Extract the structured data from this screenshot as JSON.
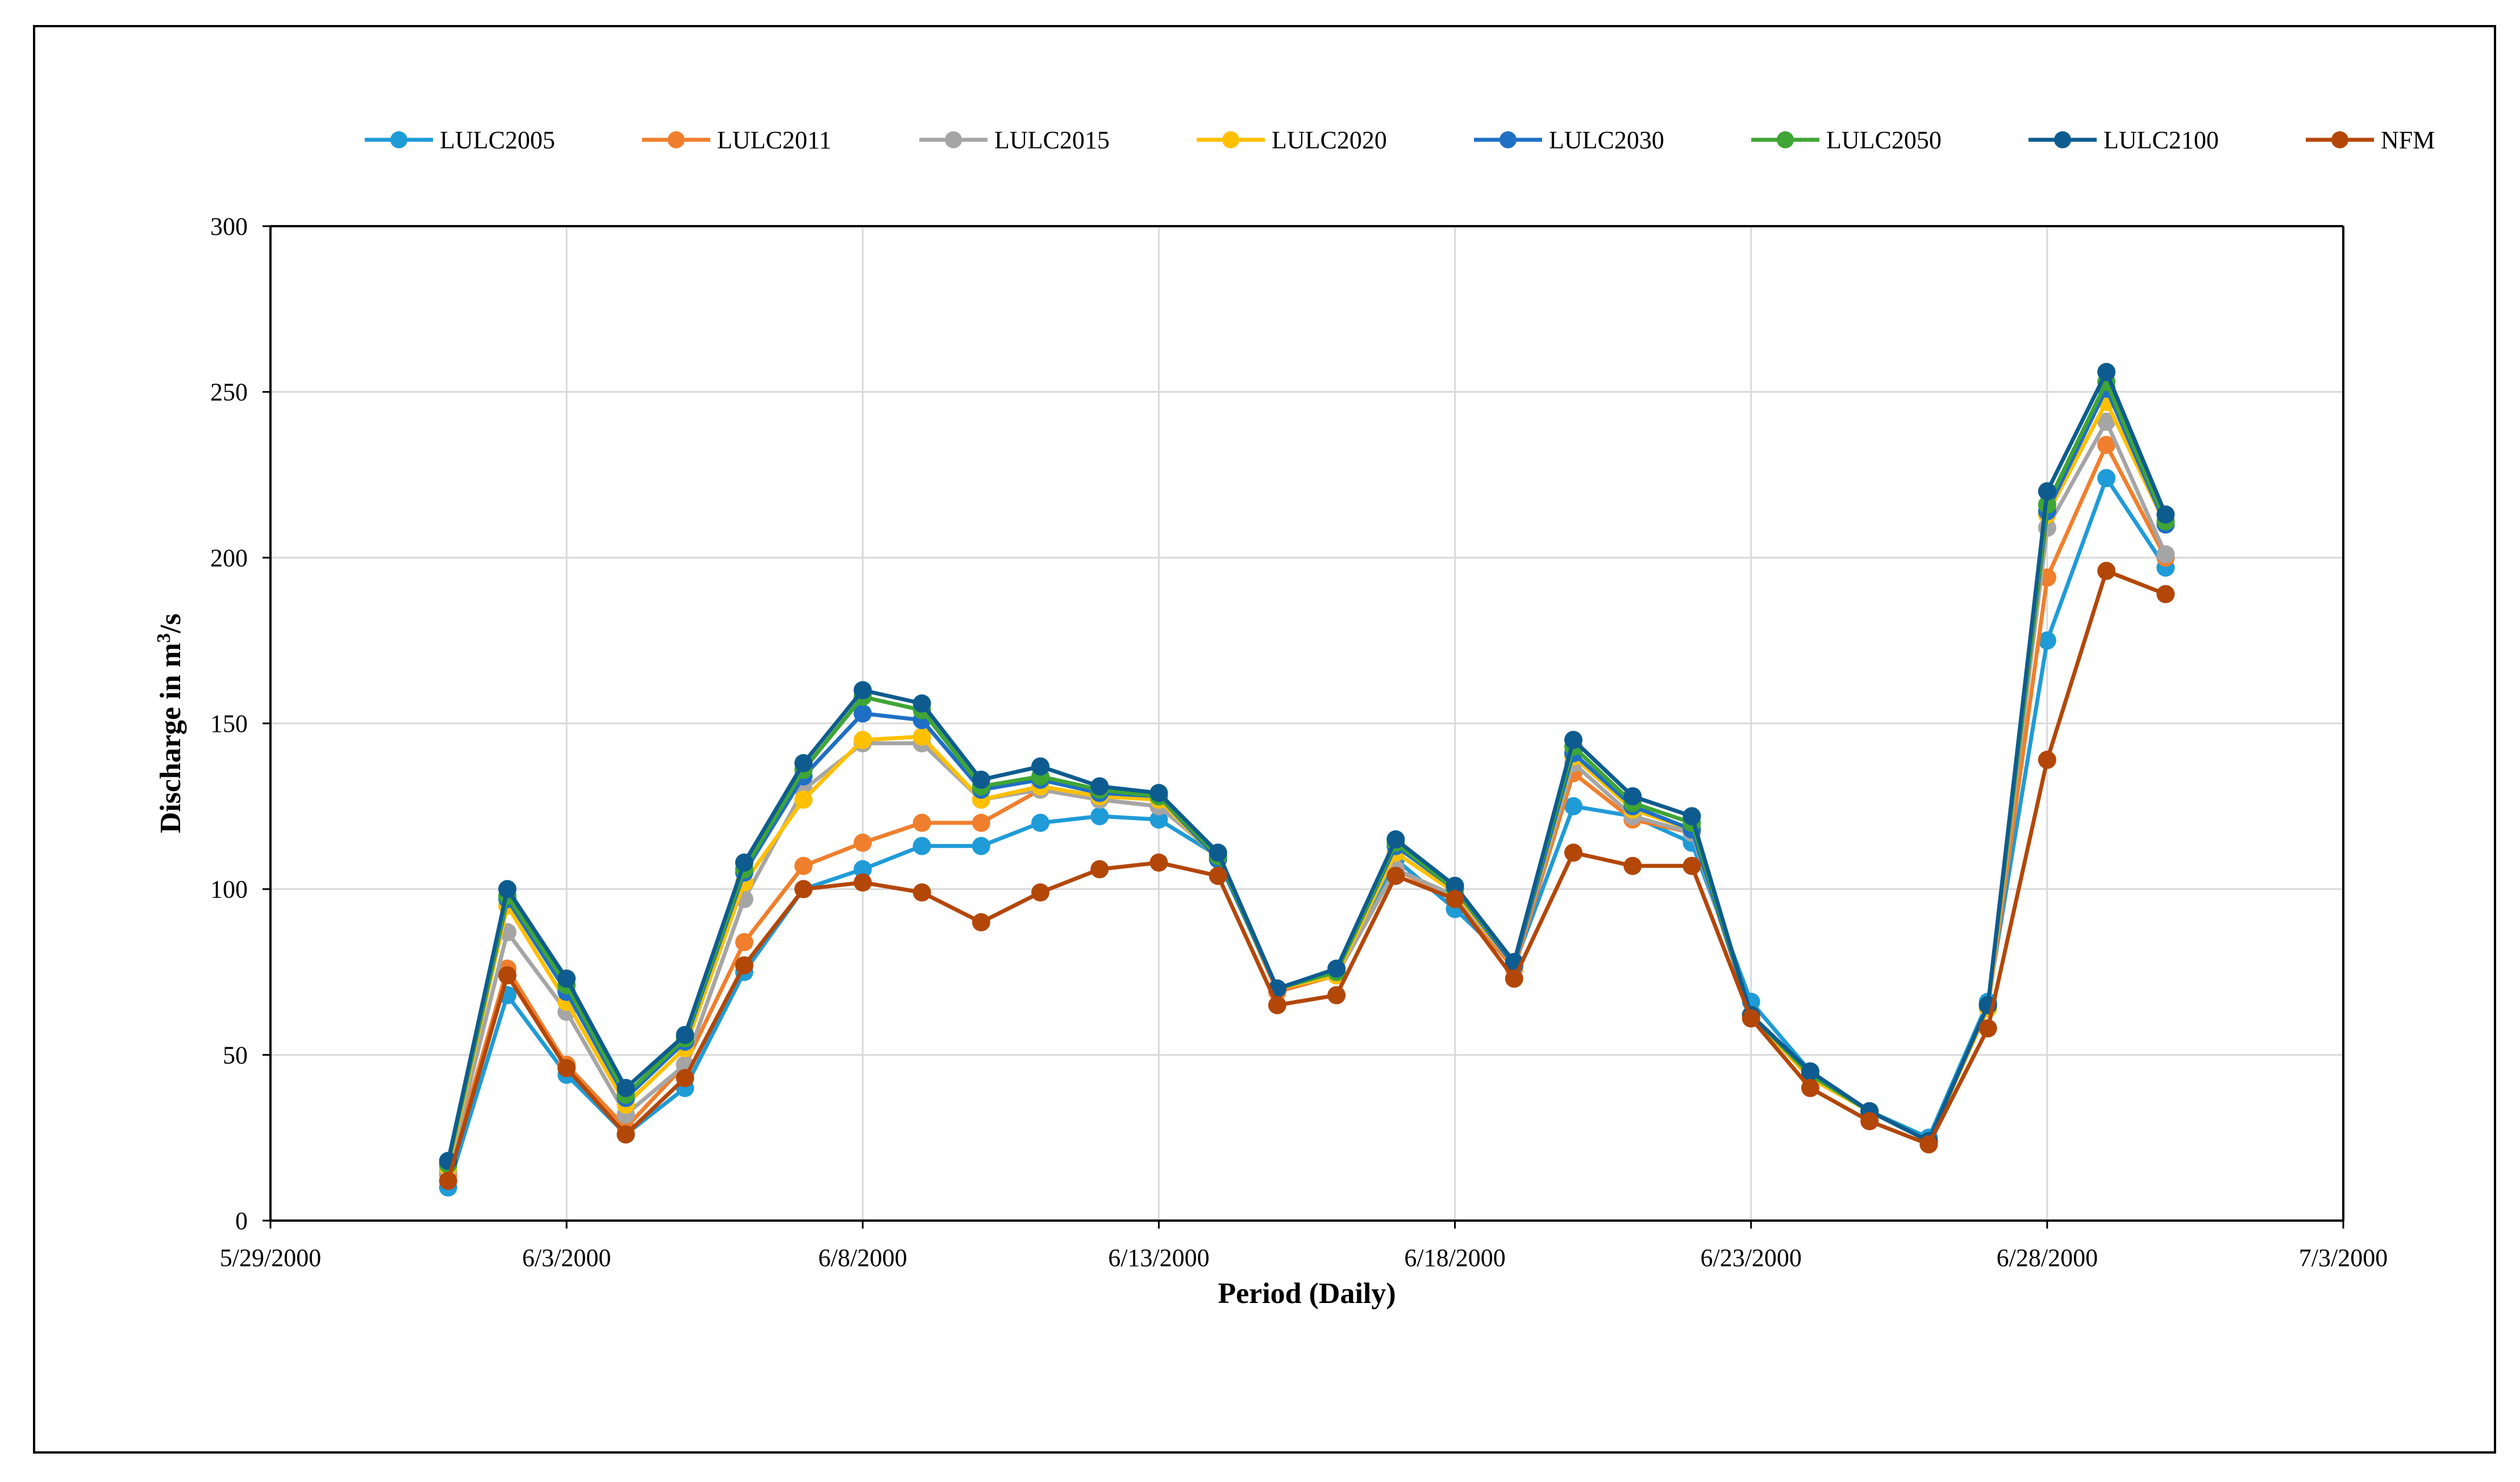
{
  "chart_data": {
    "type": "line",
    "title": "",
    "xlabel": "Period (Daily)",
    "ylabel": "Discharge in m³/s",
    "ylabel_parts": {
      "prefix": "Discharge in m",
      "sup": "3",
      "suffix": "/s"
    },
    "ylim": [
      0,
      300
    ],
    "yticks": [
      0,
      50,
      100,
      150,
      200,
      250,
      300
    ],
    "xlim": [
      "2000-05-29",
      "2000-07-03"
    ],
    "xticks": [
      "5/29/2000",
      "6/3/2000",
      "6/8/2000",
      "6/13/2000",
      "6/18/2000",
      "6/23/2000",
      "6/28/2000",
      "7/3/2000"
    ],
    "grid": true,
    "legend_position": "top",
    "x": [
      "2000-06-01",
      "2000-06-02",
      "2000-06-03",
      "2000-06-04",
      "2000-06-05",
      "2000-06-06",
      "2000-06-07",
      "2000-06-08",
      "2000-06-09",
      "2000-06-10",
      "2000-06-11",
      "2000-06-12",
      "2000-06-13",
      "2000-06-14",
      "2000-06-15",
      "2000-06-16",
      "2000-06-17",
      "2000-06-18",
      "2000-06-19",
      "2000-06-20",
      "2000-06-21",
      "2000-06-22",
      "2000-06-23",
      "2000-06-24",
      "2000-06-25",
      "2000-06-26",
      "2000-06-27",
      "2000-06-28",
      "2000-06-29",
      "2000-06-30"
    ],
    "series": [
      {
        "name": "LULC2005",
        "color": "#1F9BD7",
        "values": [
          10,
          68,
          44,
          26,
          40,
          75,
          100,
          106,
          113,
          113,
          120,
          122,
          121,
          110,
          70,
          74,
          109,
          94,
          77,
          125,
          122,
          114,
          66,
          45,
          33,
          25,
          66,
          175,
          224,
          197
        ]
      },
      {
        "name": "LULC2011",
        "color": "#F07F2D",
        "values": [
          14,
          76,
          47,
          28,
          47,
          84,
          107,
          114,
          120,
          120,
          130,
          127,
          125,
          110,
          69,
          74,
          106,
          97,
          76,
          135,
          121,
          117,
          62,
          43,
          33,
          24,
          64,
          194,
          234,
          200
        ]
      },
      {
        "name": "LULC2015",
        "color": "#A5A5A5",
        "values": [
          15,
          87,
          63,
          32,
          47,
          97,
          130,
          144,
          144,
          127,
          130,
          127,
          125,
          110,
          70,
          74,
          106,
          98,
          77,
          138,
          122,
          117,
          62,
          43,
          33,
          24,
          64,
          209,
          241,
          201
        ]
      },
      {
        "name": "LULC2020",
        "color": "#FFC000",
        "values": [
          16,
          95,
          66,
          35,
          52,
          102,
          127,
          145,
          146,
          127,
          131,
          128,
          127,
          109,
          70,
          74,
          111,
          99,
          77,
          140,
          124,
          118,
          62,
          43,
          33,
          24,
          64,
          213,
          247,
          210
        ]
      },
      {
        "name": "LULC2030",
        "color": "#1F6FC5",
        "values": [
          17,
          97,
          69,
          37,
          54,
          105,
          134,
          153,
          151,
          130,
          133,
          129,
          128,
          109,
          70,
          75,
          113,
          100,
          77,
          141,
          125,
          118,
          62,
          44,
          33,
          24,
          65,
          214,
          251,
          210
        ]
      },
      {
        "name": "LULC2050",
        "color": "#3FA535",
        "values": [
          17,
          98,
          71,
          38,
          55,
          106,
          136,
          158,
          154,
          131,
          134,
          130,
          128,
          110,
          70,
          75,
          114,
          100,
          78,
          143,
          126,
          120,
          62,
          44,
          33,
          24,
          65,
          216,
          253,
          211
        ]
      },
      {
        "name": "LULC2100",
        "color": "#0E5C8F",
        "values": [
          18,
          100,
          73,
          40,
          56,
          108,
          138,
          160,
          156,
          133,
          137,
          131,
          129,
          111,
          70,
          76,
          115,
          101,
          78,
          145,
          128,
          122,
          62,
          45,
          33,
          24,
          65,
          220,
          256,
          213
        ]
      },
      {
        "name": "NFM",
        "color": "#B34708",
        "values": [
          12,
          74,
          46,
          26,
          43,
          77,
          100,
          102,
          99,
          90,
          99,
          106,
          108,
          104,
          65,
          68,
          104,
          97,
          73,
          111,
          107,
          107,
          61,
          40,
          30,
          23,
          58,
          139,
          196,
          189
        ]
      }
    ]
  }
}
